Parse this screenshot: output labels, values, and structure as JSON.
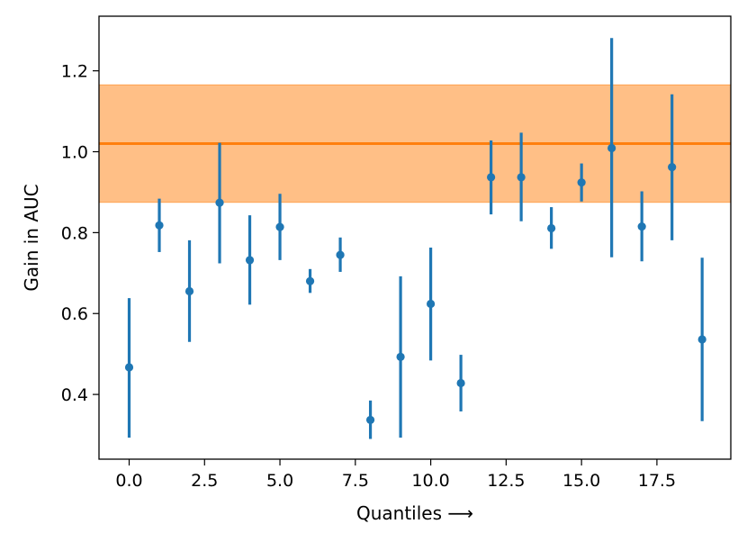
{
  "chart_data": {
    "type": "scatter",
    "xlabel": "Quantiles ⟶",
    "ylabel": "Gain in AUC",
    "xlim": [
      -1.0,
      19.95
    ],
    "ylim": [
      0.24,
      1.335
    ],
    "xticks": [
      0.0,
      2.5,
      5.0,
      7.5,
      10.0,
      12.5,
      15.0,
      17.5
    ],
    "xtick_labels": [
      "0.0",
      "2.5",
      "5.0",
      "7.5",
      "10.0",
      "12.5",
      "15.0",
      "17.5"
    ],
    "yticks": [
      0.4,
      0.6,
      0.8,
      1.0,
      1.2
    ],
    "ytick_labels": [
      "0.4",
      "0.6",
      "0.8",
      "1.0",
      "1.2"
    ],
    "grid": false,
    "reference": {
      "value": 1.02,
      "band_low": 0.875,
      "band_high": 1.165,
      "line_color": "#ff7f0e",
      "band_color": "#ffbf86"
    },
    "series": [
      {
        "color": "#1f77b4",
        "x": [
          0,
          1,
          2,
          3,
          4,
          5,
          6,
          7,
          8,
          9,
          10,
          11,
          12,
          13,
          14,
          15,
          16,
          17,
          18,
          19
        ],
        "y": [
          0.467,
          0.818,
          0.655,
          0.874,
          0.732,
          0.814,
          0.68,
          0.745,
          0.337,
          0.493,
          0.624,
          0.428,
          0.937,
          0.937,
          0.811,
          0.924,
          1.009,
          0.815,
          0.962,
          0.536
        ],
        "y_low": [
          0.293,
          0.752,
          0.53,
          0.724,
          0.622,
          0.732,
          0.651,
          0.703,
          0.29,
          0.293,
          0.484,
          0.358,
          0.845,
          0.828,
          0.76,
          0.877,
          0.739,
          0.729,
          0.781,
          0.334
        ],
        "y_high": [
          0.638,
          0.884,
          0.781,
          1.022,
          0.843,
          0.896,
          0.71,
          0.788,
          0.385,
          0.692,
          0.763,
          0.498,
          1.028,
          1.047,
          0.863,
          0.971,
          1.281,
          0.902,
          1.142,
          0.738
        ]
      }
    ]
  }
}
